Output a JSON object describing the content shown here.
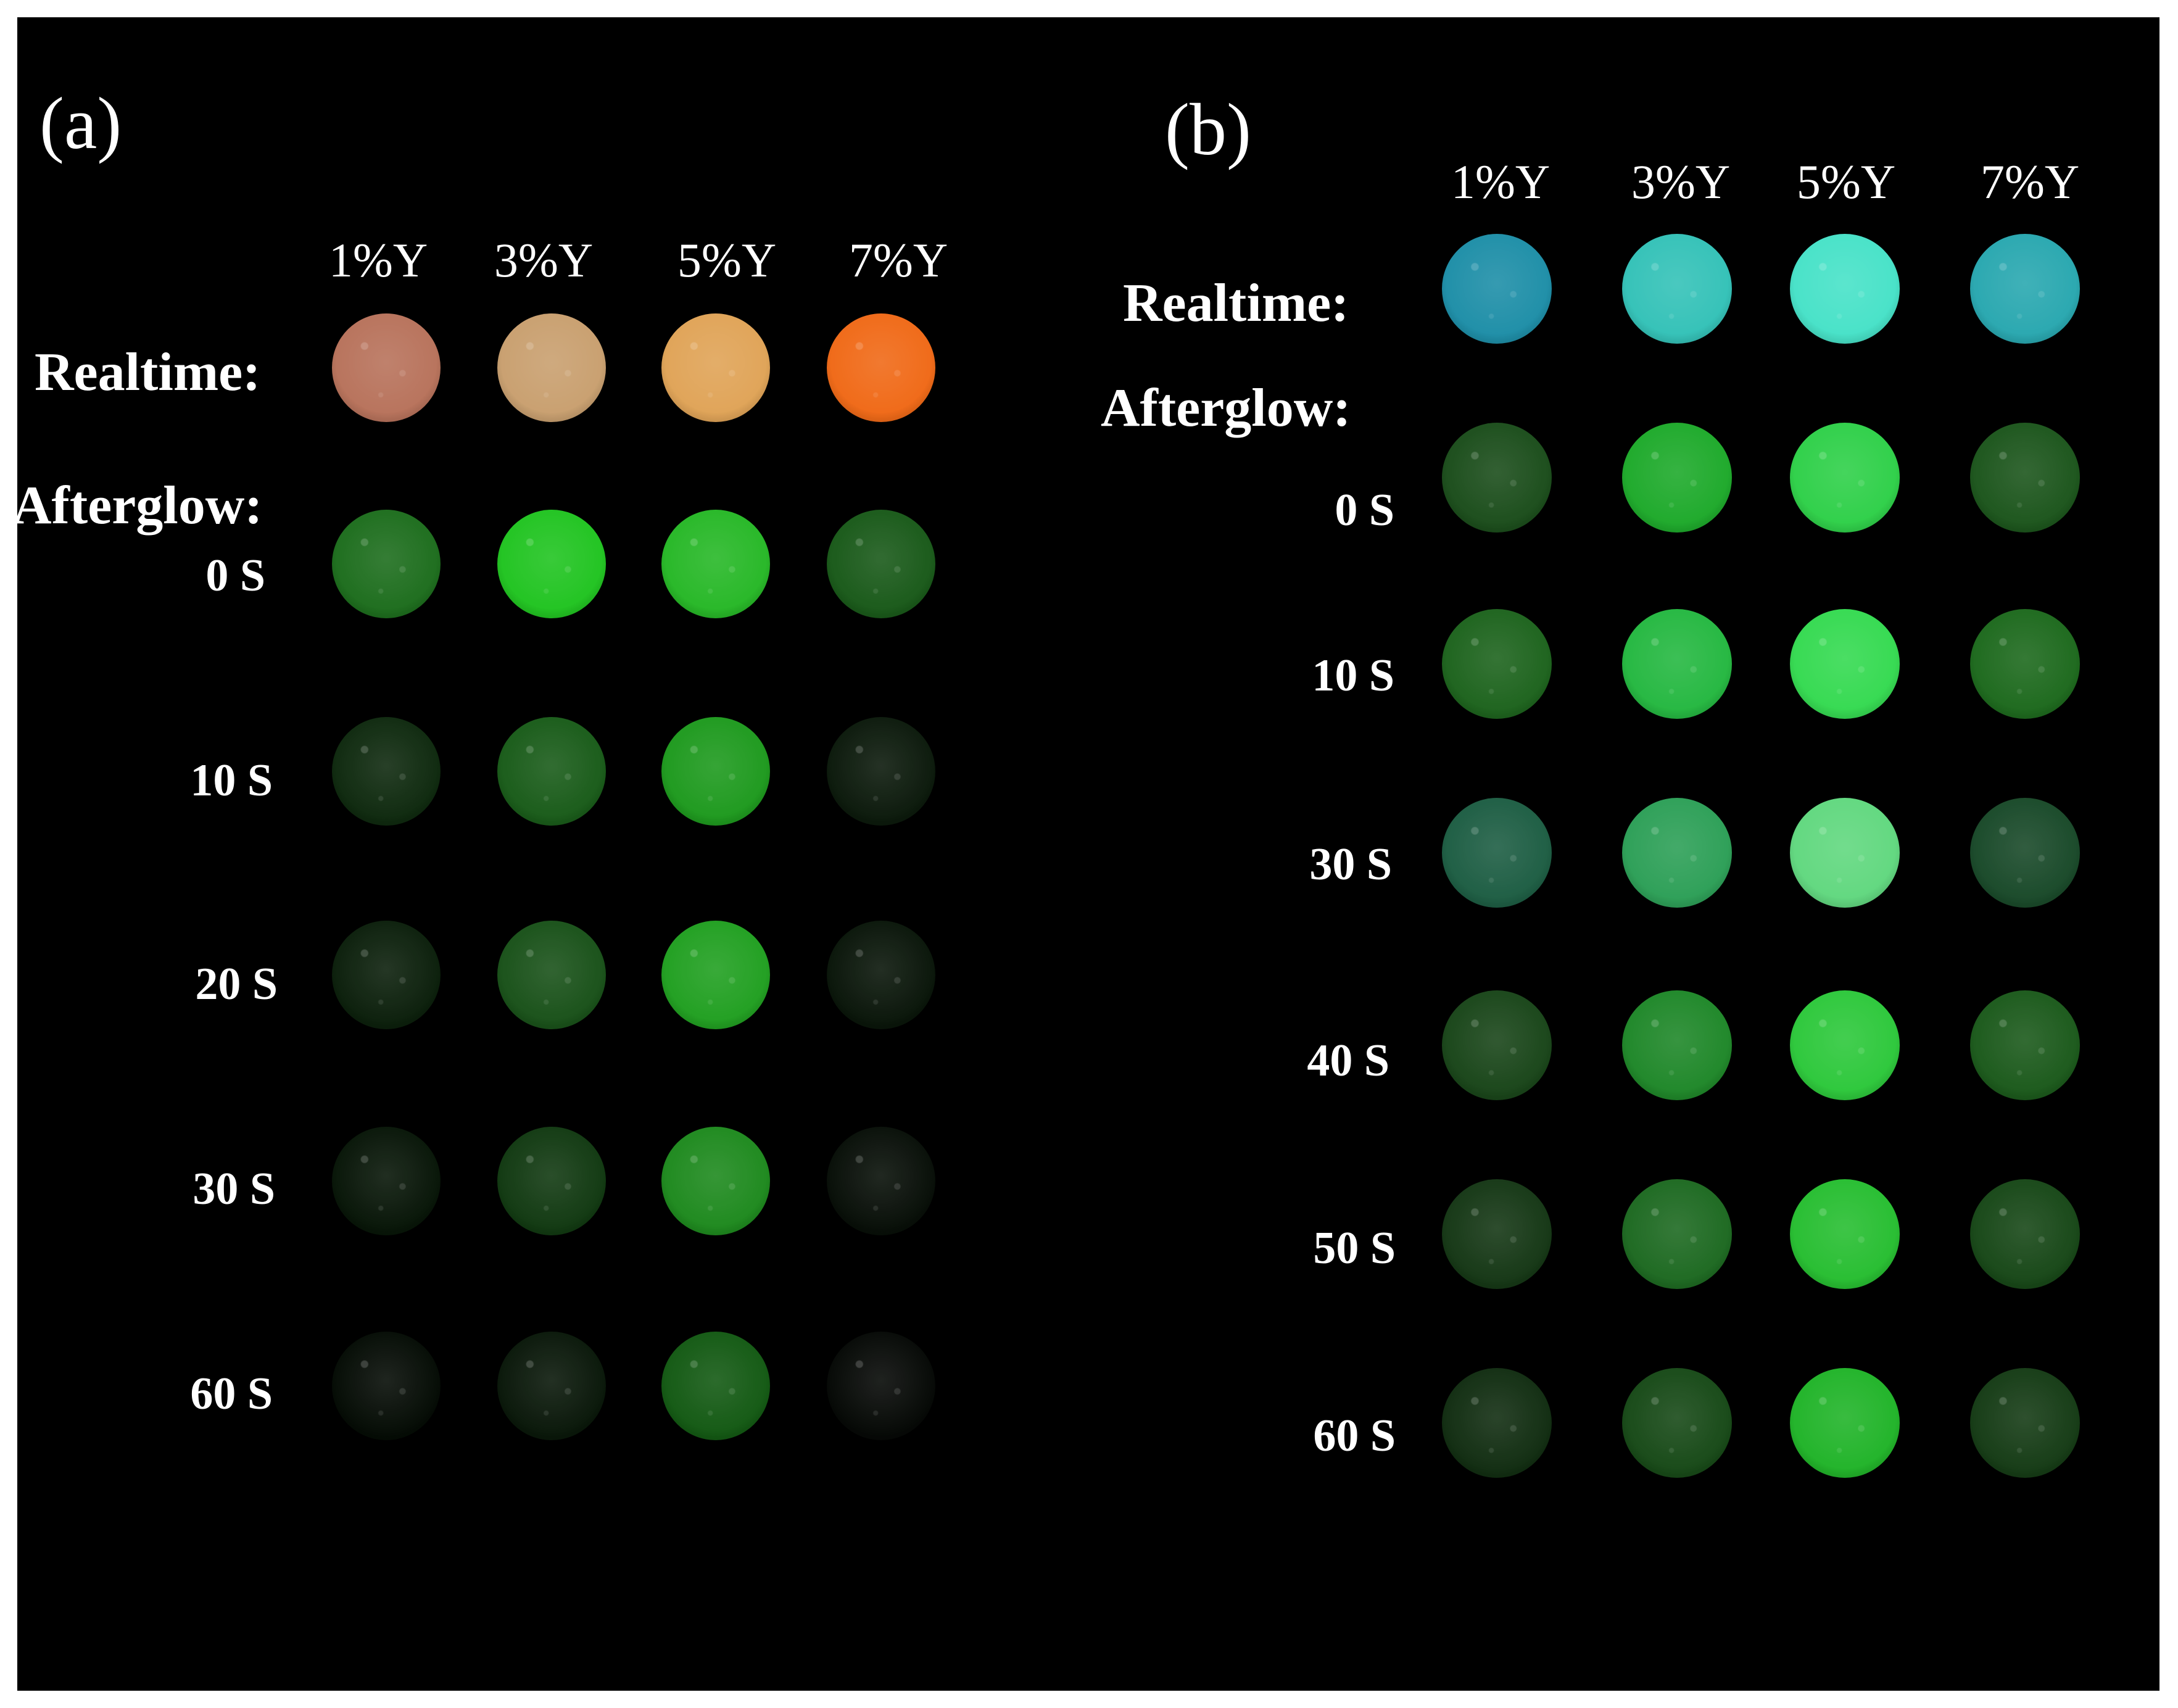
{
  "panels": [
    {
      "id": "a",
      "label": "(a)",
      "columns": [
        "1%Y",
        "3%Y",
        "5%Y",
        "7%Y"
      ],
      "realtime_label": "Realtime:",
      "afterglow_label": "Afterglow:",
      "time_labels": [
        "0 S",
        "10 S",
        "20 S",
        "30 S",
        "60 S"
      ],
      "realtime_colors": [
        "#b8735c",
        "#c9a070",
        "#e0a458",
        "#f06a18"
      ],
      "afterglow_colors": [
        [
          "#1e6e1e",
          "#22c422",
          "#28b828",
          "#1a5a1a"
        ],
        [
          "#0f2a0f",
          "#1a5c1a",
          "#1f9a1f",
          "#0c1a0c"
        ],
        [
          "#0c200c",
          "#1a521a",
          "#22a022",
          "#0a160a"
        ],
        [
          "#081608",
          "#123a12",
          "#1f8a1f",
          "#080f08"
        ],
        [
          "#050c05",
          "#0a180a",
          "#145a14",
          "#060906"
        ]
      ]
    },
    {
      "id": "b",
      "label": "(b)",
      "columns": [
        "1%Y",
        "3%Y",
        "5%Y",
        "7%Y"
      ],
      "realtime_label": "Realtime:",
      "afterglow_label": "Afterglow:",
      "time_labels": [
        "0 S",
        "10 S",
        "30 S",
        "40 S",
        "50 S",
        "60 S"
      ],
      "realtime_colors": [
        "#1f8fa8",
        "#35c2b8",
        "#48e2c8",
        "#2aa8b0"
      ],
      "afterglow_colors": [
        [
          "#1c4e1c",
          "#1faa2c",
          "#30d04a",
          "#1d561d"
        ],
        [
          "#1e641e",
          "#26b842",
          "#36da52",
          "#1e6a1e"
        ],
        [
          "#1e5e44",
          "#2ea058",
          "#62d880",
          "#1a4a2a"
        ],
        [
          "#1a461a",
          "#20882a",
          "#2ec83c",
          "#1c5a1c"
        ],
        [
          "#163816",
          "#1e6a22",
          "#28be32",
          "#184818"
        ],
        [
          "#122e12",
          "#184a18",
          "#22b42a",
          "#163c16"
        ]
      ]
    }
  ]
}
